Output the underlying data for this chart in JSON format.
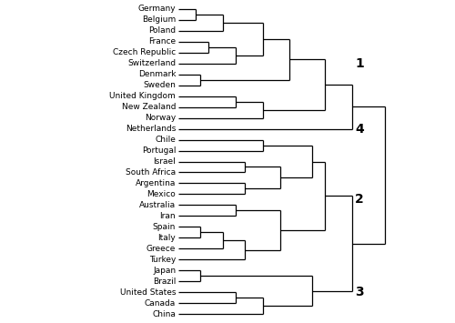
{
  "leaves": [
    "Germany",
    "Belgium",
    "Poland",
    "France",
    "Czech Republic",
    "Switzerland",
    "Denmark",
    "Sweden",
    "United Kingdom",
    "New Zealand",
    "Norway",
    "Netherlands",
    "Chile",
    "Portugal",
    "Israel",
    "South Africa",
    "Argentina",
    "Mexico",
    "Australia",
    "Iran",
    "Spain",
    "Italy",
    "Greece",
    "Turkey",
    "Japan",
    "Brazil",
    "United States",
    "Canada",
    "China"
  ],
  "line_color": "#000000",
  "label_fontsize": 6.5,
  "cluster_fontsize": 10,
  "cluster_positions": {
    "1": 5.0,
    "4": 11.0,
    "2": 17.5,
    "3": 26.0
  }
}
